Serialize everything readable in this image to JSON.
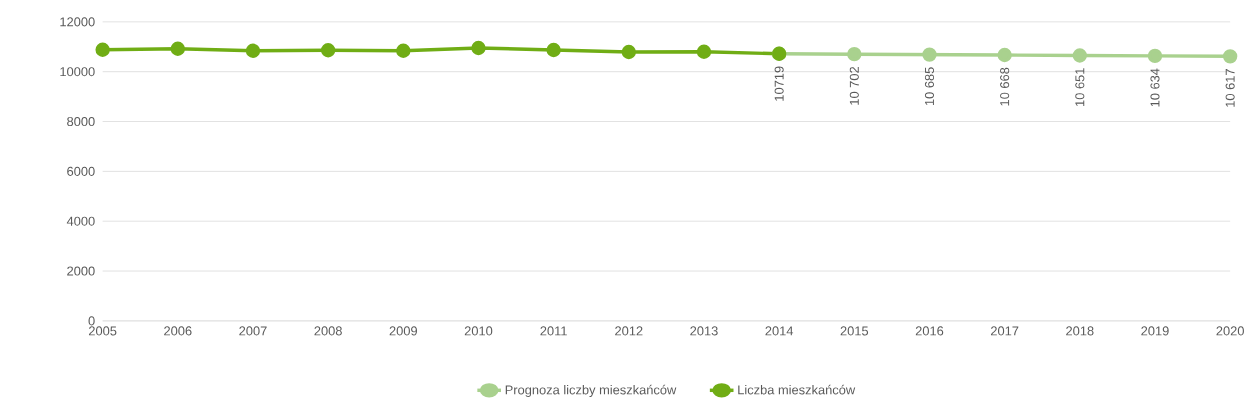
{
  "chart_data": {
    "type": "line",
    "categories": [
      "2005",
      "2006",
      "2007",
      "2008",
      "2009",
      "2010",
      "2011",
      "2012",
      "2013",
      "2014",
      "2015",
      "2016",
      "2017",
      "2018",
      "2019",
      "2020"
    ],
    "series": [
      {
        "name": "Prognoza liczby mieszkańców",
        "color": "#a9d18e",
        "values": [
          null,
          null,
          null,
          null,
          null,
          null,
          null,
          null,
          null,
          10719,
          10702,
          10685,
          10668,
          10651,
          10634,
          10617
        ],
        "value_labels": [
          null,
          null,
          null,
          null,
          null,
          null,
          null,
          null,
          null,
          null,
          "10 702",
          "10 685",
          "10 668",
          "10 651",
          "10 634",
          "10 617"
        ]
      },
      {
        "name": "Liczba mieszkańców",
        "color": "#70ad15",
        "values": [
          10880,
          10920,
          10840,
          10860,
          10840,
          10950,
          10870,
          10790,
          10800,
          10719,
          null,
          null,
          null,
          null,
          null,
          null
        ],
        "value_labels": [
          null,
          null,
          null,
          null,
          null,
          null,
          null,
          null,
          null,
          "10719",
          null,
          null,
          null,
          null,
          null,
          null
        ]
      }
    ],
    "ylim": [
      0,
      12000
    ],
    "yticks": [
      0,
      2000,
      4000,
      6000,
      8000,
      10000,
      12000
    ],
    "grid": "y",
    "legend": "bottom",
    "marker": "circle",
    "line_style": "solid"
  }
}
